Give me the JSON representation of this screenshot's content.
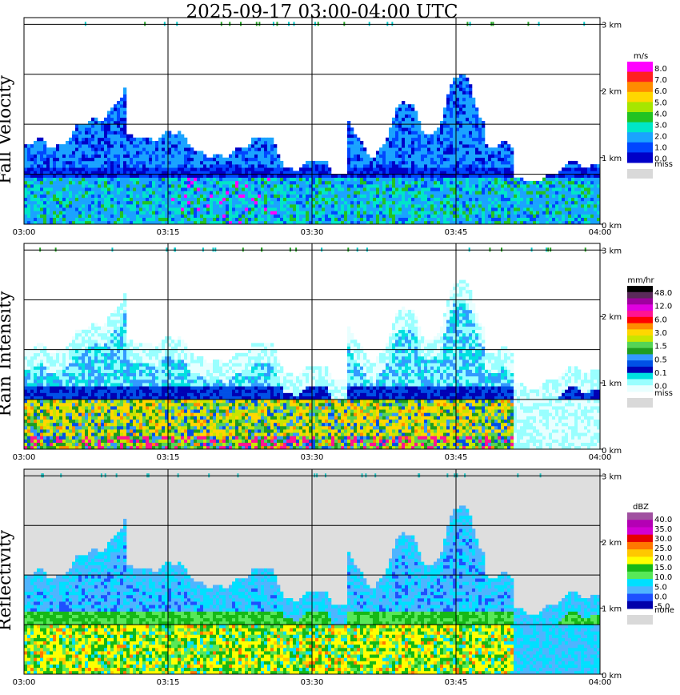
{
  "title": "2025-09-17   03:00-04:00 UTC",
  "chart_data": [
    {
      "type": "heatmap",
      "panel_label": "Fall Velocity",
      "x_tick_labels": [
        "03:00",
        "03:15",
        "03:30",
        "03:45",
        "04:00"
      ],
      "y_tick_labels": [
        "0 km",
        "1 km",
        "2 km",
        "3 km"
      ],
      "y_range_km": [
        0,
        3.1
      ],
      "colorbar_unit": "m/s",
      "colorbar_labels": [
        "8.0",
        "7.0",
        "6.0",
        "5.0",
        "4.0",
        "3.0",
        "2.0",
        "1.0",
        "0.0",
        "miss"
      ],
      "colorbar_colors": [
        "#ff00ff",
        "#ff2020",
        "#ff8c00",
        "#ffd700",
        "#a6e600",
        "#22c322",
        "#00e6c8",
        "#1aa3ff",
        "#0046ff",
        "#0000c8",
        "#d9d9d9"
      ],
      "background": "#ffffff"
    },
    {
      "type": "heatmap",
      "panel_label": "Rain Intensity",
      "x_tick_labels": [
        "03:00",
        "03:15",
        "03:30",
        "03:45",
        "04:00"
      ],
      "y_tick_labels": [
        "0 km",
        "1 km",
        "2 km",
        "3 km"
      ],
      "y_range_km": [
        0,
        3.1
      ],
      "colorbar_unit": "mm/hr",
      "colorbar_labels": [
        "48.0",
        "12.0",
        "6.0",
        "3.0",
        "1.5",
        "0.5",
        "0.1",
        "0.0",
        "miss"
      ],
      "colorbar_colors": [
        "#000000",
        "#5a2a5a",
        "#a000a0",
        "#e000e0",
        "#ff1493",
        "#ff0000",
        "#ff8c00",
        "#ffd700",
        "#c8e600",
        "#55d455",
        "#1f9d1f",
        "#3399ff",
        "#0050e6",
        "#0000b4",
        "#00e0e0",
        "#99ffff",
        "#e8ffff",
        "#d9d9d9"
      ],
      "background": "#ffffff"
    },
    {
      "type": "heatmap",
      "panel_label": "Reflectivity",
      "x_tick_labels": [
        "03:00",
        "03:15",
        "03:30",
        "03:45",
        "04:00"
      ],
      "y_tick_labels": [
        "0 km",
        "1 km",
        "2 km",
        "3 km"
      ],
      "y_range_km": [
        0,
        3.1
      ],
      "colorbar_unit": "dBZ",
      "colorbar_labels": [
        "40.0",
        "35.0",
        "30.0",
        "25.0",
        "20.0",
        "15.0",
        "10.0",
        "5.0",
        "0.0",
        "-5.0",
        "none"
      ],
      "colorbar_colors": [
        "#a050a0",
        "#b400b4",
        "#d200d2",
        "#e60000",
        "#ff7800",
        "#ffc800",
        "#ffff00",
        "#16b916",
        "#58e858",
        "#00e0ff",
        "#4fb4ff",
        "#1e50ff",
        "#0000aa",
        "#d9d9d9"
      ],
      "background": "#dedede"
    }
  ]
}
